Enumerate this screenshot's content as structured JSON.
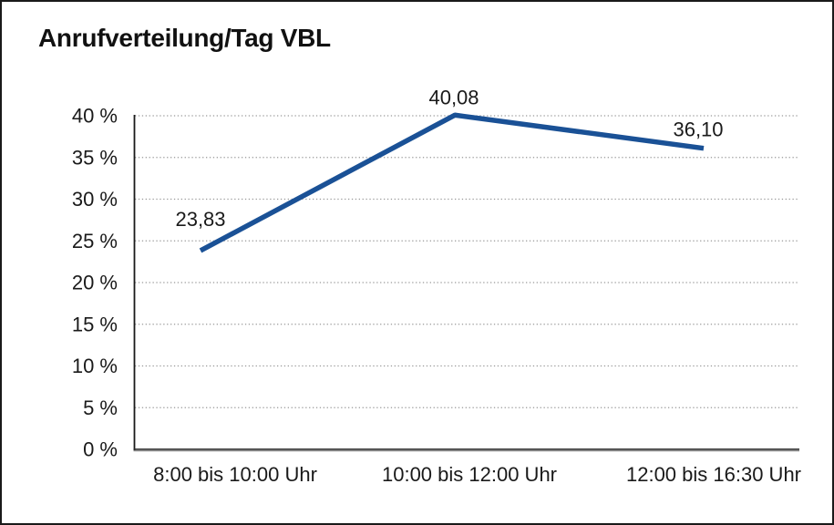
{
  "page": {
    "title": "Anrufverteilung/Tag VBL"
  },
  "chart_data": {
    "type": "line",
    "title": "Anrufverteilung/Tag VBL",
    "categories": [
      "8:00 bis 10:00 Uhr",
      "10:00 bis 12:00 Uhr",
      "12:00 bis 16:30 Uhr"
    ],
    "values": [
      23.83,
      40.08,
      36.1
    ],
    "point_labels": [
      "23,83",
      "40,08",
      "36,10"
    ],
    "series_name": "Anrufverteilung/Tag VBL",
    "xlabel": "",
    "ylabel": "",
    "ylim": [
      0,
      40
    ],
    "y_tick_step": 5,
    "y_tick_labels": [
      "0 %",
      "5 %",
      "10 %",
      "15 %",
      "20 %",
      "25 %",
      "30 %",
      "35 %",
      "40 %"
    ],
    "grid": "horizontal-dotted",
    "legend": "none",
    "colors": {
      "line": "#1A5196",
      "grid": "#999999",
      "axis": "#1a1a1a",
      "x_axis_top": "#2b2b2b",
      "x_axis_bottom": "#8a8a8a",
      "text": "#1a1a1a",
      "background": "#ffffff",
      "frame_border": "#1a1a1a"
    }
  }
}
